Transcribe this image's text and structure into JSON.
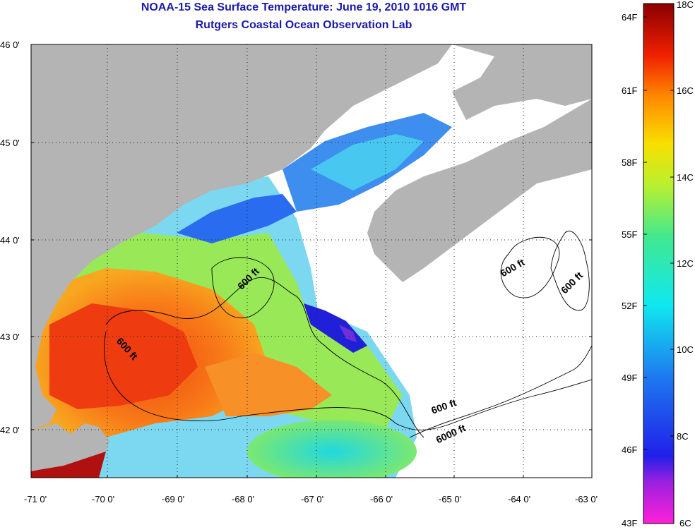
{
  "title": "NOAA-15 Sea Surface Temperature:  June 19, 2010 1016 GMT",
  "subtitle": "Rutgers Coastal Ocean Observation Lab",
  "axes": {
    "lat_labels": [
      "46 0'",
      "45 0'",
      "44 0'",
      "43 0'",
      "42 0'"
    ],
    "lon_labels": [
      "-71 0'",
      "-70 0'",
      "-69 0'",
      "-68 0'",
      "-67 0'",
      "-66 0'",
      "-65 0'",
      "-64 0'",
      "-63 0'"
    ],
    "lat_range": [
      41.5,
      46.0
    ],
    "lon_range": [
      -71.0,
      -63.0
    ],
    "gridlines": "dotted"
  },
  "contour_labels": [
    "600 ft",
    "600 ft",
    "600 ft",
    "600 ft",
    "600 ft",
    "6000 ft"
  ],
  "colorbar": {
    "fahrenheit_labels": [
      "64F",
      "61F",
      "58F",
      "55F",
      "52F",
      "49F",
      "46F",
      "43F"
    ],
    "celsius_labels": [
      "18C",
      "16C",
      "14C",
      "12C",
      "10C",
      "8C",
      "6C"
    ],
    "range_c": [
      6,
      18
    ]
  },
  "colors": {
    "title": "#1a1aa8",
    "land": "#b4b4b4",
    "no_data": "#ffffff"
  }
}
